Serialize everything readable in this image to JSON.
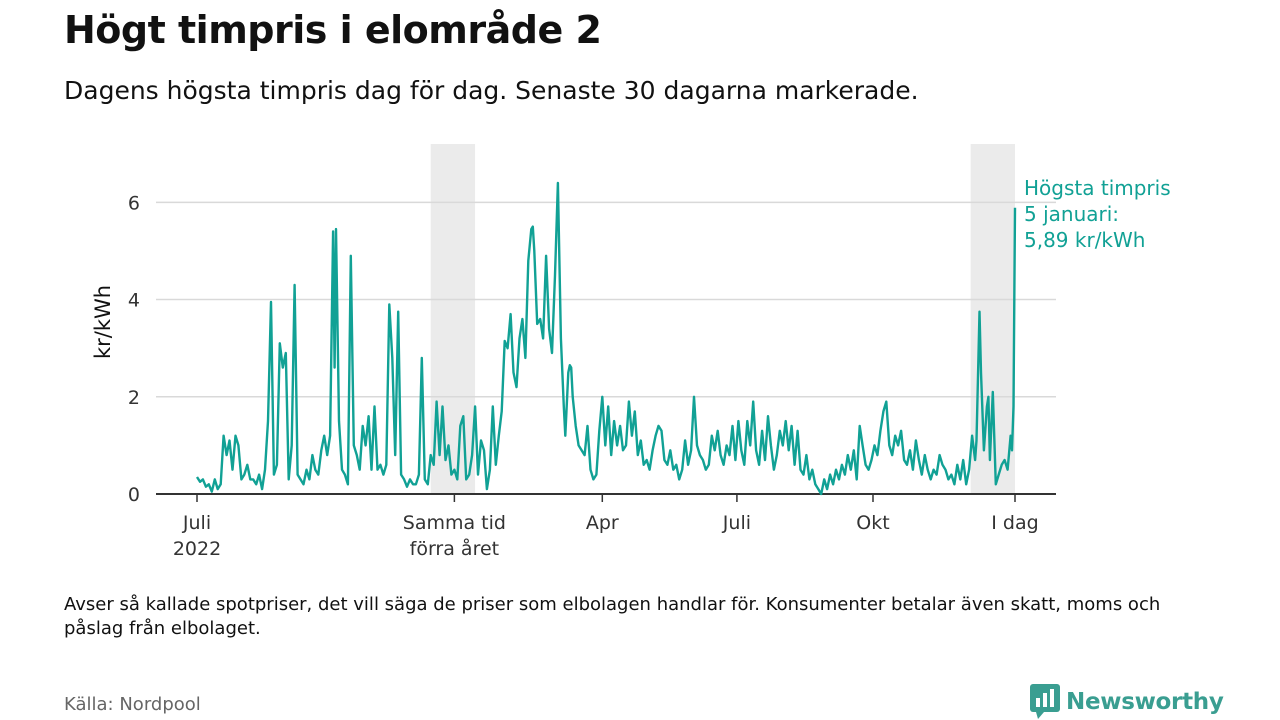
{
  "title": "Högt timpris i elområde 2",
  "subtitle": "Dagens högsta timpris dag för dag. Senaste 30 dagarna markerade.",
  "footnote": "Avser så kallade spotpriser, det vill säga de priser som elbolagen handlar för. Konsumenter betalar även skatt, moms och påslag från elbolaget.",
  "source": "Källa: Nordpool",
  "logo_text": "Newsworthy",
  "colors": {
    "line": "#11a195",
    "highlight": "#ebebeb",
    "grid": "#d9d9d9",
    "axis": "#333333"
  },
  "chart_data": {
    "type": "line",
    "title": "Högt timpris i elområde 2",
    "ylabel": "kr/kWh",
    "ylim": [
      0,
      7.2
    ],
    "yticks": [
      0,
      2,
      4,
      6
    ],
    "x_unit": "days since 2022-07-01",
    "xlim": [
      0,
      553
    ],
    "xticks": [
      {
        "x": 0,
        "label": [
          "Juli",
          "2022"
        ]
      },
      {
        "x": 174,
        "label": [
          "Samma tid",
          "förra året"
        ]
      },
      {
        "x": 274,
        "label": [
          "Apr"
        ]
      },
      {
        "x": 365,
        "label": [
          "Juli"
        ]
      },
      {
        "x": 457,
        "label": [
          "Okt"
        ]
      },
      {
        "x": 553,
        "label": [
          "I dag"
        ]
      }
    ],
    "highlight_ranges": [
      [
        158,
        188
      ],
      [
        523,
        553
      ]
    ],
    "annotation": {
      "lines": [
        "Högsta timpris",
        "5 januari:",
        "5,89 kr/kWh"
      ],
      "x": 553,
      "y": 5.89
    },
    "series": [
      {
        "name": "Högsta timpris",
        "points": [
          [
            0,
            0.35
          ],
          [
            2,
            0.25
          ],
          [
            4,
            0.3
          ],
          [
            6,
            0.15
          ],
          [
            8,
            0.2
          ],
          [
            10,
            0.05
          ],
          [
            12,
            0.3
          ],
          [
            14,
            0.1
          ],
          [
            16,
            0.2
          ],
          [
            18,
            1.2
          ],
          [
            20,
            0.8
          ],
          [
            22,
            1.1
          ],
          [
            24,
            0.5
          ],
          [
            26,
            1.2
          ],
          [
            28,
            1.0
          ],
          [
            30,
            0.3
          ],
          [
            32,
            0.4
          ],
          [
            34,
            0.6
          ],
          [
            36,
            0.3
          ],
          [
            38,
            0.3
          ],
          [
            40,
            0.2
          ],
          [
            42,
            0.4
          ],
          [
            44,
            0.1
          ],
          [
            46,
            0.5
          ],
          [
            48,
            1.5
          ],
          [
            50,
            3.95
          ],
          [
            52,
            0.4
          ],
          [
            54,
            0.6
          ],
          [
            56,
            3.1
          ],
          [
            58,
            2.6
          ],
          [
            60,
            2.9
          ],
          [
            62,
            0.3
          ],
          [
            64,
            1.0
          ],
          [
            66,
            4.3
          ],
          [
            68,
            0.4
          ],
          [
            70,
            0.3
          ],
          [
            72,
            0.2
          ],
          [
            74,
            0.5
          ],
          [
            76,
            0.3
          ],
          [
            78,
            0.8
          ],
          [
            80,
            0.5
          ],
          [
            82,
            0.4
          ],
          [
            84,
            0.9
          ],
          [
            86,
            1.2
          ],
          [
            88,
            0.8
          ],
          [
            90,
            1.2
          ],
          [
            92,
            5.4
          ],
          [
            93,
            2.6
          ],
          [
            94,
            5.45
          ],
          [
            96,
            1.5
          ],
          [
            98,
            0.5
          ],
          [
            100,
            0.4
          ],
          [
            102,
            0.2
          ],
          [
            104,
            4.9
          ],
          [
            106,
            1.0
          ],
          [
            108,
            0.8
          ],
          [
            110,
            0.5
          ],
          [
            112,
            1.4
          ],
          [
            114,
            1.0
          ],
          [
            116,
            1.6
          ],
          [
            118,
            0.5
          ],
          [
            120,
            1.8
          ],
          [
            122,
            0.5
          ],
          [
            124,
            0.6
          ],
          [
            126,
            0.4
          ],
          [
            128,
            0.6
          ],
          [
            130,
            3.9
          ],
          [
            132,
            2.8
          ],
          [
            134,
            0.8
          ],
          [
            136,
            3.75
          ],
          [
            138,
            0.4
          ],
          [
            140,
            0.3
          ],
          [
            142,
            0.15
          ],
          [
            144,
            0.3
          ],
          [
            146,
            0.2
          ],
          [
            148,
            0.2
          ],
          [
            150,
            0.4
          ],
          [
            152,
            2.8
          ],
          [
            154,
            0.3
          ],
          [
            156,
            0.2
          ],
          [
            158,
            0.8
          ],
          [
            160,
            0.6
          ],
          [
            162,
            1.9
          ],
          [
            164,
            0.8
          ],
          [
            166,
            1.8
          ],
          [
            168,
            0.7
          ],
          [
            170,
            1.0
          ],
          [
            172,
            0.4
          ],
          [
            174,
            0.5
          ],
          [
            176,
            0.3
          ],
          [
            178,
            1.4
          ],
          [
            180,
            1.6
          ],
          [
            182,
            0.3
          ],
          [
            184,
            0.4
          ],
          [
            186,
            0.8
          ],
          [
            188,
            1.8
          ],
          [
            190,
            0.4
          ],
          [
            192,
            1.1
          ],
          [
            194,
            0.9
          ],
          [
            196,
            0.1
          ],
          [
            198,
            0.5
          ],
          [
            200,
            1.8
          ],
          [
            202,
            0.6
          ],
          [
            204,
            1.2
          ],
          [
            206,
            1.7
          ],
          [
            208,
            3.15
          ],
          [
            210,
            3.0
          ],
          [
            212,
            3.7
          ],
          [
            214,
            2.5
          ],
          [
            216,
            2.2
          ],
          [
            218,
            3.2
          ],
          [
            220,
            3.6
          ],
          [
            222,
            2.8
          ],
          [
            224,
            4.8
          ],
          [
            226,
            5.45
          ],
          [
            227,
            5.5
          ],
          [
            228,
            5.0
          ],
          [
            230,
            3.5
          ],
          [
            232,
            3.6
          ],
          [
            234,
            3.2
          ],
          [
            236,
            4.9
          ],
          [
            238,
            3.4
          ],
          [
            240,
            2.9
          ],
          [
            242,
            4.5
          ],
          [
            244,
            6.4
          ],
          [
            246,
            3.2
          ],
          [
            248,
            1.8
          ],
          [
            249,
            1.2
          ],
          [
            251,
            2.5
          ],
          [
            252,
            2.65
          ],
          [
            253,
            2.6
          ],
          [
            254,
            2.0
          ],
          [
            256,
            1.4
          ],
          [
            258,
            1.0
          ],
          [
            260,
            0.9
          ],
          [
            262,
            0.8
          ],
          [
            264,
            1.4
          ],
          [
            266,
            0.5
          ],
          [
            268,
            0.3
          ],
          [
            270,
            0.4
          ],
          [
            272,
            1.3
          ],
          [
            274,
            2.0
          ],
          [
            276,
            1.0
          ],
          [
            278,
            1.8
          ],
          [
            280,
            0.8
          ],
          [
            282,
            1.5
          ],
          [
            284,
            1.0
          ],
          [
            286,
            1.4
          ],
          [
            288,
            0.9
          ],
          [
            290,
            1.0
          ],
          [
            292,
            1.9
          ],
          [
            294,
            1.2
          ],
          [
            296,
            1.7
          ],
          [
            298,
            0.8
          ],
          [
            300,
            1.1
          ],
          [
            302,
            0.6
          ],
          [
            304,
            0.7
          ],
          [
            306,
            0.5
          ],
          [
            308,
            0.9
          ],
          [
            310,
            1.2
          ],
          [
            312,
            1.4
          ],
          [
            314,
            1.3
          ],
          [
            316,
            0.7
          ],
          [
            318,
            0.6
          ],
          [
            320,
            0.9
          ],
          [
            322,
            0.5
          ],
          [
            324,
            0.6
          ],
          [
            326,
            0.3
          ],
          [
            328,
            0.5
          ],
          [
            330,
            1.1
          ],
          [
            332,
            0.6
          ],
          [
            334,
            0.9
          ],
          [
            336,
            2.0
          ],
          [
            338,
            1.0
          ],
          [
            340,
            0.8
          ],
          [
            342,
            0.7
          ],
          [
            344,
            0.5
          ],
          [
            346,
            0.6
          ],
          [
            348,
            1.2
          ],
          [
            350,
            0.9
          ],
          [
            352,
            1.3
          ],
          [
            354,
            0.8
          ],
          [
            356,
            0.6
          ],
          [
            358,
            1.0
          ],
          [
            360,
            0.8
          ],
          [
            362,
            1.4
          ],
          [
            364,
            0.7
          ],
          [
            366,
            1.5
          ],
          [
            368,
            0.9
          ],
          [
            370,
            0.6
          ],
          [
            372,
            1.5
          ],
          [
            374,
            1.0
          ],
          [
            376,
            1.9
          ],
          [
            378,
            0.9
          ],
          [
            380,
            0.6
          ],
          [
            382,
            1.3
          ],
          [
            384,
            0.7
          ],
          [
            386,
            1.6
          ],
          [
            388,
            1.0
          ],
          [
            390,
            0.5
          ],
          [
            392,
            0.8
          ],
          [
            394,
            1.3
          ],
          [
            396,
            1.0
          ],
          [
            398,
            1.5
          ],
          [
            400,
            0.9
          ],
          [
            402,
            1.4
          ],
          [
            404,
            0.6
          ],
          [
            406,
            1.3
          ],
          [
            408,
            0.5
          ],
          [
            410,
            0.4
          ],
          [
            412,
            0.8
          ],
          [
            414,
            0.3
          ],
          [
            416,
            0.5
          ],
          [
            418,
            0.2
          ],
          [
            420,
            0.1
          ],
          [
            422,
            0.0
          ],
          [
            424,
            0.3
          ],
          [
            426,
            0.1
          ],
          [
            428,
            0.4
          ],
          [
            430,
            0.2
          ],
          [
            432,
            0.5
          ],
          [
            434,
            0.3
          ],
          [
            436,
            0.6
          ],
          [
            438,
            0.4
          ],
          [
            440,
            0.8
          ],
          [
            442,
            0.5
          ],
          [
            444,
            0.9
          ],
          [
            446,
            0.3
          ],
          [
            448,
            1.4
          ],
          [
            450,
            1.0
          ],
          [
            452,
            0.6
          ],
          [
            454,
            0.5
          ],
          [
            456,
            0.7
          ],
          [
            458,
            1.0
          ],
          [
            460,
            0.8
          ],
          [
            462,
            1.3
          ],
          [
            464,
            1.7
          ],
          [
            466,
            1.9
          ],
          [
            468,
            1.0
          ],
          [
            470,
            0.8
          ],
          [
            472,
            1.2
          ],
          [
            474,
            1.0
          ],
          [
            476,
            1.3
          ],
          [
            478,
            0.7
          ],
          [
            480,
            0.6
          ],
          [
            482,
            0.9
          ],
          [
            484,
            0.5
          ],
          [
            486,
            1.1
          ],
          [
            488,
            0.7
          ],
          [
            490,
            0.4
          ],
          [
            492,
            0.8
          ],
          [
            494,
            0.5
          ],
          [
            496,
            0.3
          ],
          [
            498,
            0.5
          ],
          [
            500,
            0.4
          ],
          [
            502,
            0.8
          ],
          [
            504,
            0.6
          ],
          [
            506,
            0.5
          ],
          [
            508,
            0.3
          ],
          [
            510,
            0.4
          ],
          [
            512,
            0.2
          ],
          [
            514,
            0.6
          ],
          [
            516,
            0.3
          ],
          [
            518,
            0.7
          ],
          [
            520,
            0.2
          ],
          [
            522,
            0.5
          ],
          [
            524,
            1.2
          ],
          [
            526,
            0.7
          ],
          [
            527,
            1.1
          ],
          [
            529,
            3.75
          ],
          [
            530,
            2.5
          ],
          [
            532,
            0.9
          ],
          [
            534,
            1.8
          ],
          [
            535,
            2.0
          ],
          [
            536,
            0.7
          ],
          [
            538,
            2.1
          ],
          [
            540,
            0.2
          ],
          [
            542,
            0.4
          ],
          [
            544,
            0.6
          ],
          [
            546,
            0.7
          ],
          [
            548,
            0.5
          ],
          [
            550,
            1.2
          ],
          [
            551,
            0.9
          ],
          [
            552,
            1.8
          ],
          [
            553,
            5.89
          ]
        ]
      }
    ]
  }
}
